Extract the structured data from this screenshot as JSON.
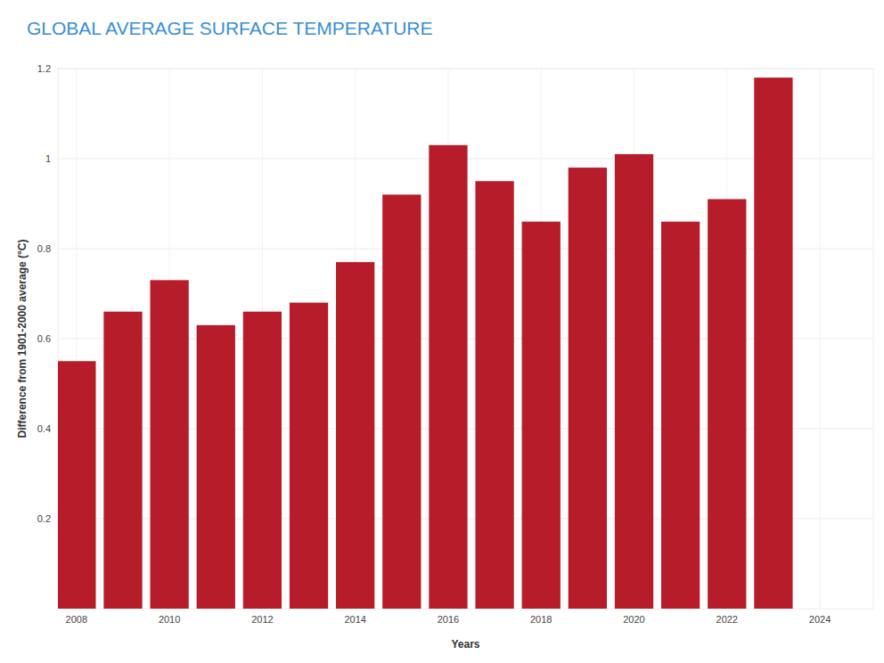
{
  "chart_data": {
    "type": "bar",
    "title": "GLOBAL AVERAGE SURFACE TEMPERATURE",
    "x_label": "Years",
    "y_label": "Difference from 1901-2000 average (°C)",
    "x": [
      2008,
      2009,
      2010,
      2011,
      2012,
      2013,
      2014,
      2015,
      2016,
      2017,
      2018,
      2019,
      2020,
      2021,
      2022,
      2023
    ],
    "values": [
      0.55,
      0.66,
      0.73,
      0.63,
      0.66,
      0.68,
      0.77,
      0.92,
      1.03,
      0.95,
      0.86,
      0.98,
      1.01,
      0.86,
      0.91,
      1.18
    ],
    "color": "#b71c2a",
    "xlim": [
      2007.6,
      2025.15
    ],
    "xticks": [
      2008,
      2010,
      2012,
      2014,
      2016,
      2018,
      2020,
      2022,
      2024
    ],
    "ylim": [
      0,
      1.2
    ],
    "yticks": [
      0.2,
      0.4,
      0.6,
      0.8,
      1,
      1.2
    ],
    "grid": true
  }
}
